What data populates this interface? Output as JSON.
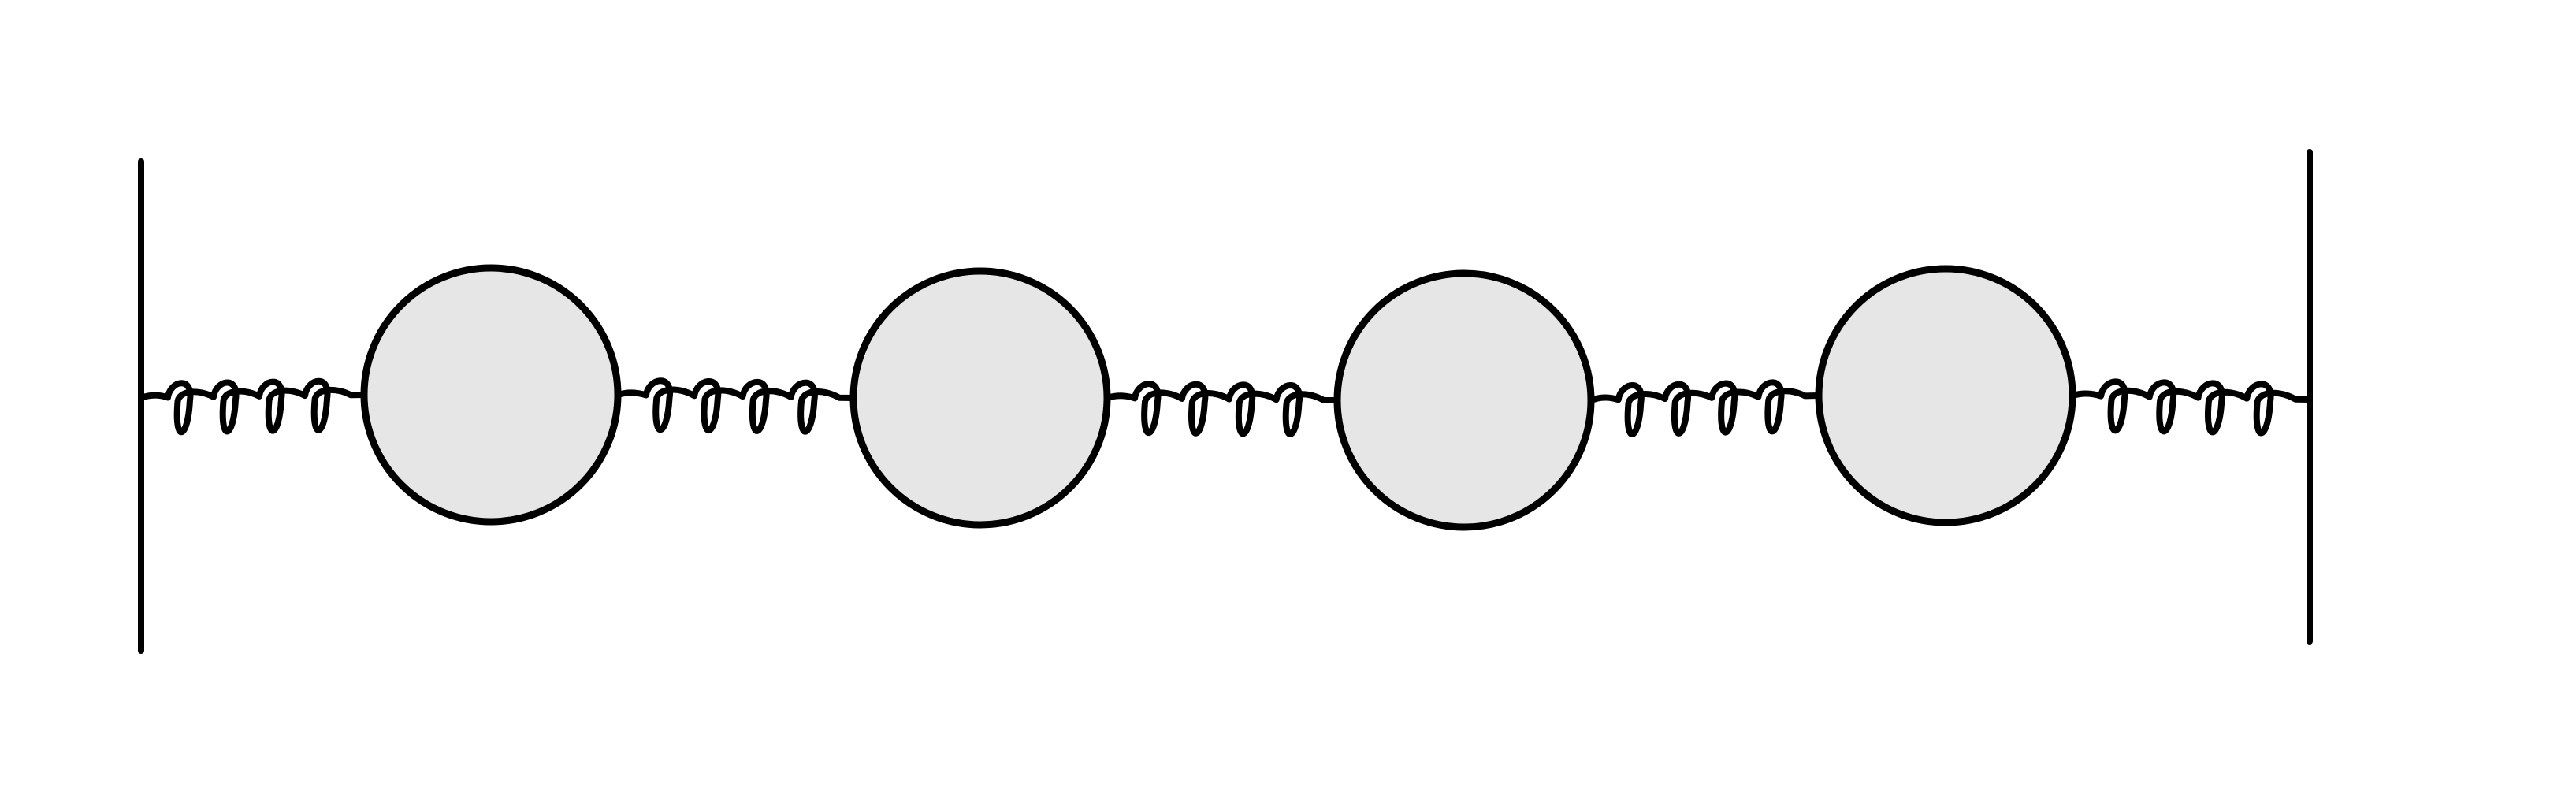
{
  "diagram": {
    "kind": "spring-mass-chain",
    "walls": 2,
    "masses": 4,
    "springs": 5,
    "colors": {
      "stroke": "#000000",
      "mass_fill": "#e6e6e6",
      "background": "#ffffff"
    }
  }
}
